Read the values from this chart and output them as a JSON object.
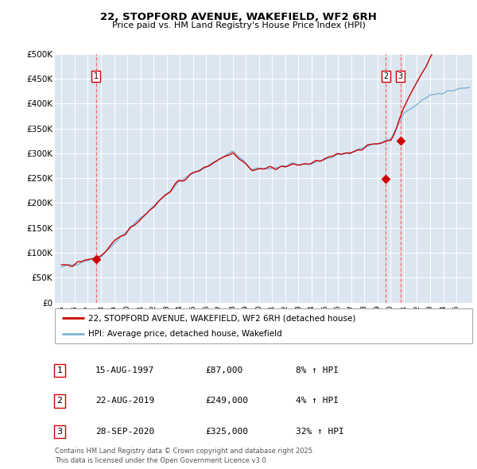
{
  "title": "22, STOPFORD AVENUE, WAKEFIELD, WF2 6RH",
  "subtitle": "Price paid vs. HM Land Registry's House Price Index (HPI)",
  "ylim": [
    0,
    500000
  ],
  "yticks": [
    0,
    50000,
    100000,
    150000,
    200000,
    250000,
    300000,
    350000,
    400000,
    450000,
    500000
  ],
  "ytick_labels": [
    "£0",
    "£50K",
    "£100K",
    "£150K",
    "£200K",
    "£250K",
    "£300K",
    "£350K",
    "£400K",
    "£450K",
    "£500K"
  ],
  "sale_dates": [
    1997.62,
    2019.64,
    2020.74
  ],
  "sale_prices": [
    87000,
    249000,
    325000
  ],
  "sale_labels": [
    "1",
    "2",
    "3"
  ],
  "legend_line1": "22, STOPFORD AVENUE, WAKEFIELD, WF2 6RH (detached house)",
  "legend_line2": "HPI: Average price, detached house, Wakefield",
  "annotation_rows": [
    [
      "1",
      "15-AUG-1997",
      "£87,000",
      "8% ↑ HPI"
    ],
    [
      "2",
      "22-AUG-2019",
      "£249,000",
      "4% ↑ HPI"
    ],
    [
      "3",
      "28-SEP-2020",
      "£325,000",
      "32% ↑ HPI"
    ]
  ],
  "footnote": "Contains HM Land Registry data © Crown copyright and database right 2025.\nThis data is licensed under the Open Government Licence v3.0.",
  "red_line_color": "#cc0000",
  "blue_line_color": "#7fb3d3",
  "plot_bg": "#dce6f0",
  "grid_color": "#ffffff",
  "vline_color": "#ff5555"
}
